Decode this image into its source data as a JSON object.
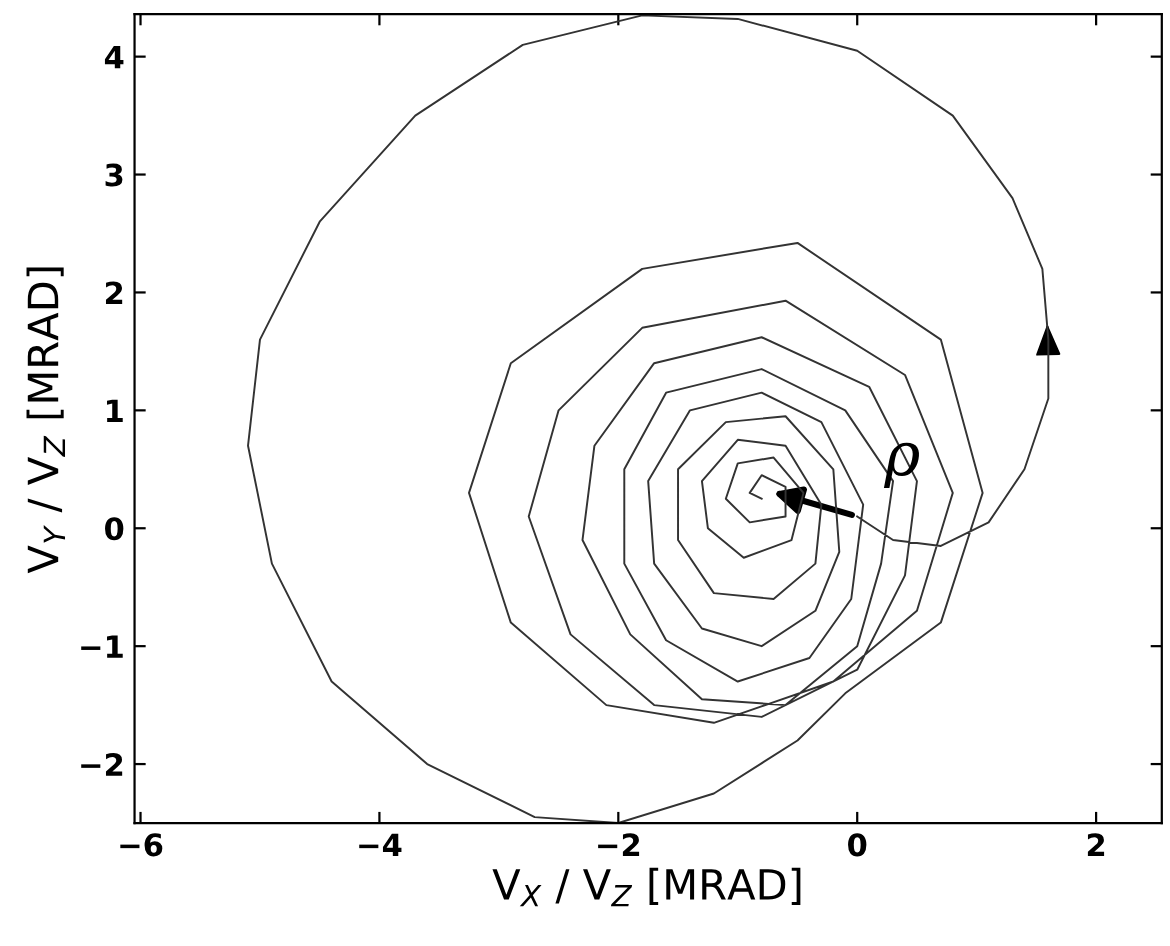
{
  "chart_data": {
    "type": "line",
    "xlabel": "V$_{X}$ / V$_{Z}$ [MRAD]",
    "ylabel": "V$_{Y}$ / V$_{Z}$ [MRAD]",
    "annotations": [
      "ρ"
    ],
    "xlim": [
      -6.05,
      2.55
    ],
    "ylim": [
      -2.5,
      4.36
    ],
    "xticks": [
      -6,
      -4,
      -2,
      0,
      2
    ],
    "yticks": [
      -2,
      -1,
      0,
      1,
      2,
      3,
      4
    ],
    "grid": false,
    "legend": false,
    "marker": "none",
    "line_style": "solid",
    "series": [
      {
        "color": "#333333",
        "x": [
          0,
          0.3,
          0.7,
          1.1,
          1.4,
          1.6,
          1.6,
          1.55,
          1.3,
          0.8,
          0.0,
          -1.0,
          -1.8,
          -2.8,
          -3.7,
          -4.5,
          -5.0,
          -5.1,
          -4.9,
          -4.4,
          -3.6,
          -2.7,
          -2.0,
          -1.2,
          -0.5,
          -0.1,
          0.7,
          1.05,
          0.7,
          -0.5,
          -1.8,
          -2.9,
          -3.25,
          -2.9,
          -2.1,
          -1.2,
          -0.2,
          0.5,
          0.8,
          0.4,
          -0.6,
          -1.8,
          -2.5,
          -2.75,
          -2.4,
          -1.7,
          -0.8,
          0.0,
          0.4,
          0.5,
          0.1,
          -0.8,
          -1.7,
          -2.2,
          -2.3,
          -1.9,
          -1.3,
          -0.6,
          0.0,
          0.2,
          0.3,
          -0.1,
          -0.8,
          -1.6,
          -1.95,
          -1.95,
          -1.6,
          -1.0,
          -0.4,
          -0.05,
          0.05,
          -0.3,
          -0.8,
          -1.4,
          -1.75,
          -1.7,
          -1.3,
          -0.8,
          -0.35,
          -0.15,
          -0.2,
          -0.6,
          -1.1,
          -1.5,
          -1.5,
          -1.2,
          -0.7,
          -0.35,
          -0.3,
          -0.6,
          -1.0,
          -1.3,
          -1.25,
          -0.95,
          -0.55,
          -0.45,
          -0.7,
          -1.0,
          -1.1,
          -0.9,
          -0.6,
          -0.6,
          -0.8,
          -0.9,
          -0.8
        ],
        "values": [
          0.1,
          -0.1,
          -0.15,
          0.05,
          0.5,
          1.1,
          1.6,
          2.2,
          2.8,
          3.5,
          4.05,
          4.32,
          4.35,
          4.1,
          3.5,
          2.6,
          1.6,
          0.7,
          -0.3,
          -1.3,
          -2.0,
          -2.45,
          -2.5,
          -2.25,
          -1.8,
          -1.4,
          -0.8,
          0.3,
          1.6,
          2.42,
          2.2,
          1.4,
          0.3,
          -0.8,
          -1.5,
          -1.65,
          -1.3,
          -0.7,
          0.3,
          1.3,
          1.93,
          1.7,
          1.0,
          0.1,
          -0.9,
          -1.5,
          -1.6,
          -1.2,
          -0.4,
          0.4,
          1.2,
          1.62,
          1.4,
          0.7,
          -0.1,
          -0.9,
          -1.45,
          -1.5,
          -1.0,
          -0.3,
          0.4,
          1.0,
          1.35,
          1.15,
          0.5,
          -0.3,
          -0.95,
          -1.3,
          -1.1,
          -0.6,
          0.2,
          0.9,
          1.15,
          1.0,
          0.4,
          -0.3,
          -0.85,
          -1.0,
          -0.7,
          -0.2,
          0.5,
          0.95,
          0.9,
          0.5,
          -0.1,
          -0.55,
          -0.6,
          -0.3,
          0.2,
          0.7,
          0.75,
          0.4,
          0.0,
          -0.25,
          -0.1,
          0.3,
          0.6,
          0.55,
          0.25,
          0.05,
          0.1,
          0.35,
          0.45,
          0.3,
          0.25
        ]
      }
    ]
  }
}
